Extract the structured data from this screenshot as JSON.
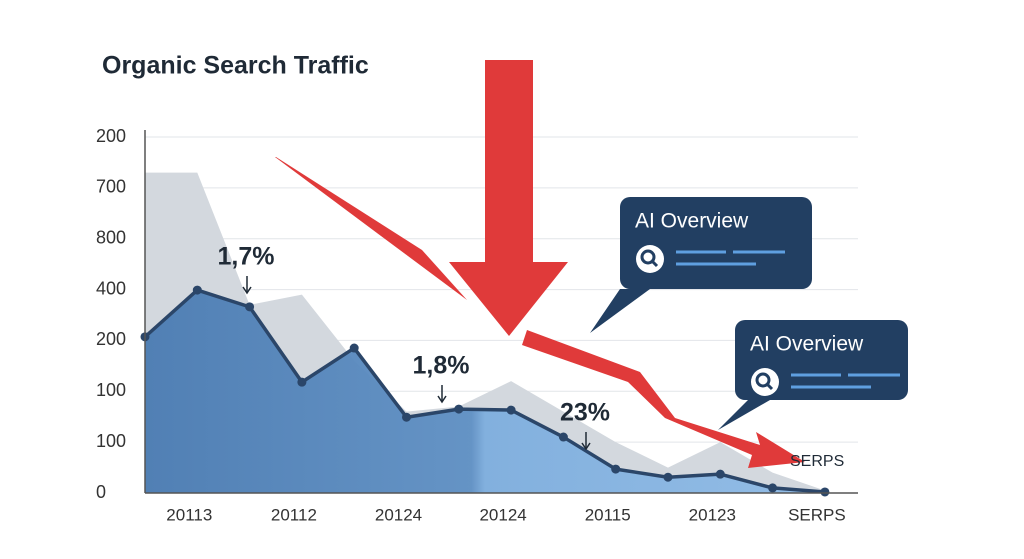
{
  "chart_data": {
    "type": "area",
    "title": "Organic Search Traffic",
    "categories": [
      null,
      "20113",
      null,
      "20112",
      null,
      "20124",
      null,
      "20124",
      null,
      "20115",
      null,
      "20123",
      null,
      "SERPS"
    ],
    "series": [
      {
        "color": "#d3d8de",
        "values": [
          6.3,
          6.3,
          3.7,
          3.9,
          2.6,
          1.6,
          1.7,
          2.2,
          1.6,
          1.0,
          0.5,
          1.0,
          0.4,
          0.05
        ]
      },
      {
        "color": "#2b4669",
        "fill": "#4f80b6",
        "values": [
          3.07,
          3.99,
          3.66,
          2.18,
          2.85,
          1.49,
          1.65,
          1.63,
          1.1,
          0.47,
          0.31,
          0.37,
          0.1,
          0.02
        ]
      }
    ],
    "ylim": [
      0,
      7
    ],
    "yticks": [
      {
        "value": 0,
        "label": "0"
      },
      {
        "value": 1,
        "label": "100"
      },
      {
        "value": 2,
        "label": "100"
      },
      {
        "value": 3,
        "label": "200"
      },
      {
        "value": 4,
        "label": "400"
      },
      {
        "value": 5,
        "label": "800"
      },
      {
        "value": 6,
        "label": "700"
      },
      {
        "value": 7,
        "label": "200"
      }
    ],
    "grid": true,
    "annotations": [
      "1,7%",
      "1,8%",
      "23%",
      "AI Overview",
      "AI Overview",
      "SERPS"
    ]
  }
}
